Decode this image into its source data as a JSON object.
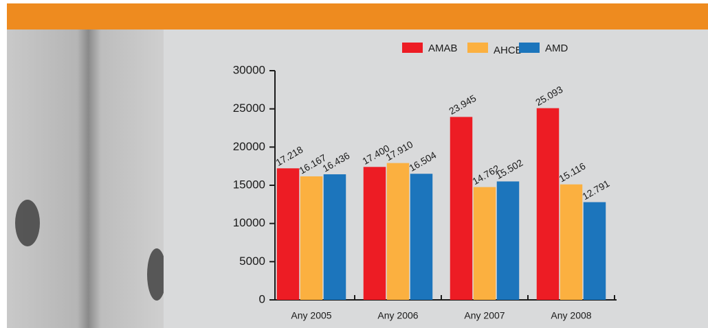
{
  "chart_data": {
    "type": "bar",
    "categories": [
      "Any 2005",
      "Any 2006",
      "Any 2007",
      "Any 2008"
    ],
    "series": [
      {
        "name": "AMAB",
        "color": "#ed1c24",
        "values": [
          17218,
          17400,
          23945,
          25093
        ],
        "value_labels": [
          "17.218",
          "17.400",
          "23.945",
          "25.093"
        ]
      },
      {
        "name": "AHCB",
        "color": "#fbb040",
        "values": [
          16167,
          17910,
          14762,
          15116
        ],
        "value_labels": [
          "16.167",
          "17.910",
          "14.762",
          "15.116"
        ]
      },
      {
        "name": "AMD",
        "color": "#1c75bc",
        "values": [
          16436,
          16504,
          15502,
          12791
        ],
        "value_labels": [
          "16.436",
          "16.504",
          "15.502",
          "12.791"
        ]
      }
    ],
    "ylim": [
      0,
      30000
    ],
    "yticks": [
      0,
      5000,
      10000,
      15000,
      20000,
      25000,
      30000
    ]
  }
}
